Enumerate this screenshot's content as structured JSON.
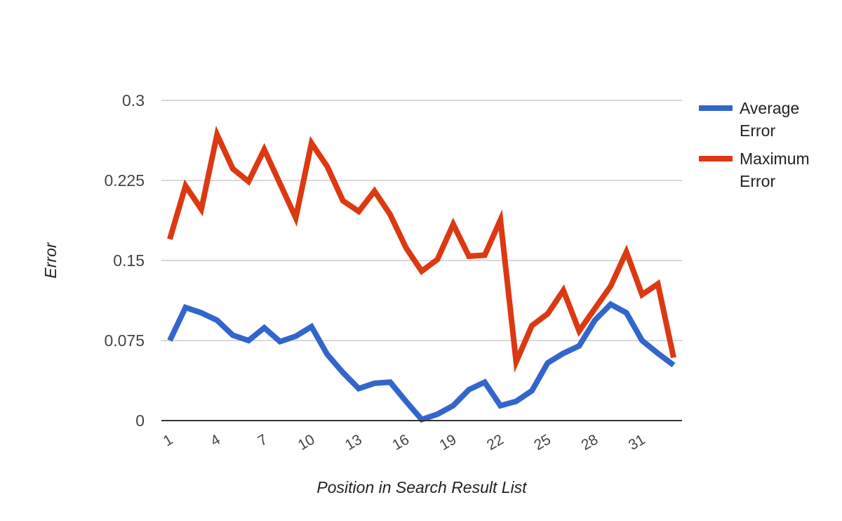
{
  "chart_data": {
    "type": "line",
    "xlabel": "Position in Search Result List",
    "ylabel": "Error",
    "x": [
      1,
      2,
      3,
      4,
      5,
      6,
      7,
      8,
      9,
      10,
      11,
      12,
      13,
      14,
      15,
      16,
      17,
      18,
      19,
      20,
      21,
      22,
      23,
      24,
      25,
      26,
      27,
      28,
      29,
      30,
      31,
      32,
      33
    ],
    "x_tick_labels": [
      "1",
      "4",
      "7",
      "10",
      "13",
      "16",
      "19",
      "22",
      "25",
      "28",
      "31"
    ],
    "y_tick_labels": [
      "0",
      "0.075",
      "0.15",
      "0.225",
      "0.3"
    ],
    "ylim": [
      0,
      0.3
    ],
    "grid": true,
    "legend_position": "right",
    "series": [
      {
        "name": "Average Error",
        "color": "#3366cc",
        "values": [
          0.075,
          0.106,
          0.101,
          0.094,
          0.08,
          0.075,
          0.087,
          0.074,
          0.079,
          0.088,
          0.062,
          0.045,
          0.03,
          0.035,
          0.036,
          0.018,
          0.001,
          0.006,
          0.014,
          0.029,
          0.036,
          0.014,
          0.018,
          0.028,
          0.054,
          0.063,
          0.07,
          0.094,
          0.109,
          0.101,
          0.075,
          0.063,
          0.052
        ]
      },
      {
        "name": "Maximum Error",
        "color": "#dc3912",
        "values": [
          0.17,
          0.22,
          0.198,
          0.268,
          0.236,
          0.224,
          0.254,
          0.222,
          0.19,
          0.26,
          0.238,
          0.206,
          0.196,
          0.215,
          0.193,
          0.162,
          0.14,
          0.151,
          0.184,
          0.154,
          0.155,
          0.188,
          0.055,
          0.089,
          0.1,
          0.122,
          0.084,
          0.105,
          0.126,
          0.158,
          0.118,
          0.128,
          0.059
        ]
      }
    ]
  }
}
